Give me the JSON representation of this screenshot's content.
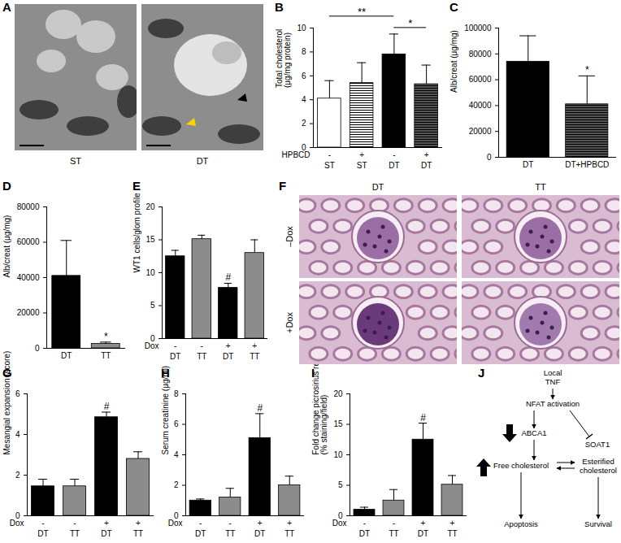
{
  "chart_data": [
    {
      "panel": "B",
      "type": "bar",
      "y_label": "Total cholesterol\n(μg/mg protein)",
      "categories": [
        "ST",
        "ST",
        "DT",
        "DT"
      ],
      "group_label": "HPBCD",
      "groups": [
        "-",
        "+",
        "-",
        "+"
      ],
      "values": [
        4.1,
        5.4,
        7.8,
        5.3
      ],
      "errors": [
        1.5,
        1.7,
        1.7,
        1.6
      ],
      "colors": [
        "#ffffff",
        "#ffffff",
        "#000000",
        "#555555"
      ],
      "ylim": [
        0,
        10
      ],
      "yticks": [
        0,
        2,
        4,
        6,
        8,
        10
      ],
      "annotations": [
        {
          "text": "*",
          "from": 2,
          "to": 3
        },
        {
          "text": "**",
          "from": 0,
          "to": 2
        }
      ]
    },
    {
      "panel": "C",
      "type": "bar",
      "y_label": "Alb/creat (μg/mg)",
      "categories": [
        "DT",
        "DT+HPBCD"
      ],
      "values": [
        74000,
        41000
      ],
      "errors": [
        20000,
        22000
      ],
      "colors": [
        "#000000",
        "#555555"
      ],
      "ylim": [
        0,
        100000
      ],
      "yticks": [
        0,
        20000,
        40000,
        60000,
        80000,
        100000
      ],
      "annotations": [
        {
          "text": "*",
          "at": 1
        }
      ]
    },
    {
      "panel": "D",
      "type": "bar",
      "y_label": "Alb/creat (μg/mg)",
      "categories": [
        "DT",
        "TT"
      ],
      "values": [
        41000,
        2500
      ],
      "errors": [
        20000,
        1000
      ],
      "colors": [
        "#000000",
        "#8c8c8c"
      ],
      "ylim": [
        0,
        80000
      ],
      "yticks": [
        0,
        20000,
        40000,
        60000,
        80000
      ],
      "annotations": [
        {
          "text": "*",
          "at": 1
        }
      ]
    },
    {
      "panel": "E",
      "type": "bar",
      "y_label": "WT1 cells/glom profile",
      "categories": [
        "DT",
        "TT",
        "DT",
        "TT"
      ],
      "group_label": "Dox",
      "groups": [
        "-",
        "-",
        "+",
        "+"
      ],
      "values": [
        12.5,
        15.1,
        7.7,
        13.0
      ],
      "errors": [
        0.9,
        0.6,
        0.7,
        2.0
      ],
      "colors": [
        "#000000",
        "#8c8c8c",
        "#000000",
        "#8c8c8c"
      ],
      "ylim": [
        0,
        20
      ],
      "yticks": [
        0,
        5,
        10,
        15,
        20
      ],
      "annotations": [
        {
          "text": "#",
          "at": 2
        }
      ]
    },
    {
      "panel": "G",
      "type": "bar",
      "y_label": "Mesangial expansion (score)",
      "categories": [
        "DT",
        "TT",
        "DT",
        "TT"
      ],
      "group_label": "Dox",
      "groups": [
        "-",
        "-",
        "+",
        "+"
      ],
      "values": [
        1.45,
        1.45,
        4.85,
        2.8
      ],
      "errors": [
        0.35,
        0.35,
        0.25,
        0.35
      ],
      "colors": [
        "#000000",
        "#8c8c8c",
        "#000000",
        "#8c8c8c"
      ],
      "ylim": [
        0,
        6
      ],
      "yticks": [
        0,
        2,
        4,
        6
      ],
      "annotations": [
        {
          "text": "#",
          "at": 2
        }
      ]
    },
    {
      "panel": "H",
      "type": "bar",
      "y_label": "Serum creatinine (μg/ml)",
      "categories": [
        "DT",
        "TT",
        "DT",
        "TT"
      ],
      "group_label": "Dox",
      "groups": [
        "-",
        "-",
        "+",
        "+"
      ],
      "values": [
        1.0,
        1.2,
        5.1,
        2.0
      ],
      "errors": [
        0.1,
        0.6,
        1.6,
        0.6
      ],
      "colors": [
        "#000000",
        "#8c8c8c",
        "#000000",
        "#8c8c8c"
      ],
      "ylim": [
        0,
        8
      ],
      "yticks": [
        0,
        2,
        4,
        6,
        8
      ],
      "annotations": [
        {
          "text": "#",
          "at": 2
        }
      ]
    },
    {
      "panel": "I",
      "type": "bar",
      "y_label": "Fold change picrosirius red\n(% staining/field)",
      "categories": [
        "DT",
        "TT",
        "DT",
        "TT"
      ],
      "group_label": "Dox",
      "groups": [
        "-",
        "-",
        "+",
        "+"
      ],
      "values": [
        1.0,
        2.5,
        12.5,
        5.1
      ],
      "errors": [
        0.4,
        1.8,
        2.7,
        1.5
      ],
      "colors": [
        "#000000",
        "#8c8c8c",
        "#000000",
        "#8c8c8c"
      ],
      "ylim": [
        0,
        20
      ],
      "yticks": [
        0,
        5,
        10,
        15,
        20
      ],
      "annotations": [
        {
          "text": "#",
          "at": 2
        }
      ]
    }
  ],
  "images": [
    {
      "panel": "A",
      "labels": [
        "ST",
        "DT"
      ]
    },
    {
      "panel": "F",
      "columns": [
        "DT",
        "TT"
      ],
      "rows": [
        "–Dox",
        "+Dox"
      ]
    }
  ],
  "diagram": {
    "panel": "J",
    "nodes": [
      "Local\nTNF",
      "NFAT activation",
      "ABCA1",
      "Free cholesterol",
      "SOAT1",
      "Esterified\ncholesterol",
      "Apoptosis",
      "Survival"
    ]
  }
}
